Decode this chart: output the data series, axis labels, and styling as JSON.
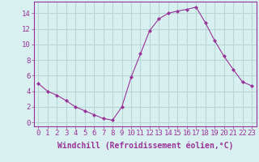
{
  "x": [
    0,
    1,
    2,
    3,
    4,
    5,
    6,
    7,
    8,
    9,
    10,
    11,
    12,
    13,
    14,
    15,
    16,
    17,
    18,
    19,
    20,
    21,
    22,
    23
  ],
  "y": [
    5,
    4,
    3.5,
    2.8,
    2,
    1.5,
    1,
    0.5,
    0.3,
    2,
    5.8,
    8.8,
    11.8,
    13.3,
    14,
    14.3,
    14.5,
    14.8,
    12.8,
    10.5,
    8.5,
    6.8,
    5.2,
    4.7
  ],
  "line_color": "#993399",
  "marker": "D",
  "marker_size": 2,
  "line_width": 0.8,
  "bg_color": "#d8f0f0",
  "grid_color": "#b8d8d8",
  "xlabel": "Windchill (Refroidissement éolien,°C)",
  "xlabel_fontsize": 7,
  "xtick_labels": [
    "0",
    "1",
    "2",
    "3",
    "4",
    "5",
    "6",
    "7",
    "8",
    "9",
    "10",
    "11",
    "12",
    "13",
    "14",
    "15",
    "16",
    "17",
    "18",
    "19",
    "20",
    "21",
    "22",
    "23"
  ],
  "ytick_values": [
    0,
    2,
    4,
    6,
    8,
    10,
    12,
    14
  ],
  "ylim": [
    -0.5,
    15.5
  ],
  "xlim": [
    -0.5,
    23.5
  ],
  "tick_color": "#993399",
  "tick_fontsize": 6.5,
  "axis_label_color": "#993399",
  "spine_color": "#993399"
}
